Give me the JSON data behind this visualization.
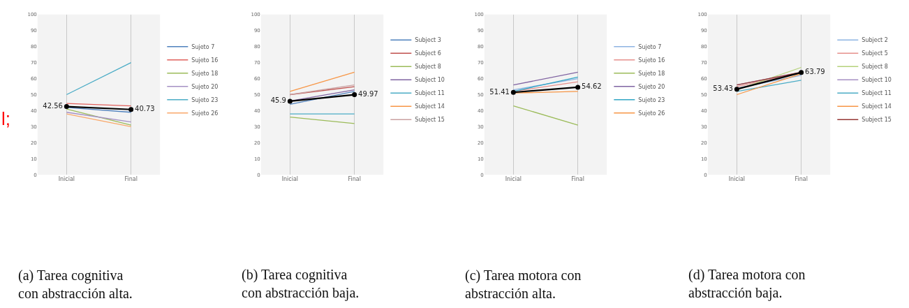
{
  "chart_data": [
    {
      "type": "line",
      "categories": [
        "Inicial",
        "Final"
      ],
      "ylim": [
        0,
        100
      ],
      "yticks": [
        0,
        10,
        20,
        30,
        40,
        50,
        60,
        70,
        80,
        90,
        100
      ],
      "grid": "x",
      "legend": "right",
      "annotations": [
        "(a) Tarea cognitiva con abstracción alta.",
        "l;"
      ],
      "series": [
        {
          "name": "Sujeto 7",
          "color": "#4f81bd",
          "values": [
            42,
            39
          ]
        },
        {
          "name": "Sujeto 16",
          "color": "#e0605c",
          "values": [
            44.5,
            43
          ]
        },
        {
          "name": "Sujeto 18",
          "color": "#9bbb59",
          "values": [
            41,
            31
          ]
        },
        {
          "name": "Sujeto 20",
          "color": "#a590c4",
          "values": [
            39,
            33
          ]
        },
        {
          "name": "Sujeto 23",
          "color": "#4bacc6",
          "values": [
            50,
            70
          ]
        },
        {
          "name": "Sujeto 26",
          "color": "#f9a86a",
          "values": [
            38,
            30
          ]
        },
        {
          "color": "#000000",
          "values": [
            42.56,
            40.73
          ],
          "marker": "circle",
          "value_labels": [
            "42.56",
            "40.73"
          ]
        }
      ]
    },
    {
      "type": "line",
      "categories": [
        "Inicial",
        "Final"
      ],
      "ylim": [
        0,
        100
      ],
      "yticks": [
        0,
        10,
        20,
        30,
        40,
        50,
        60,
        70,
        80,
        90,
        100
      ],
      "grid": "x",
      "legend": "right",
      "annotations": [
        "(b) Tarea cognitiva con abstracción baja."
      ],
      "series": [
        {
          "name": "Subject 3",
          "color": "#4f81bd",
          "values": [
            44,
            52
          ]
        },
        {
          "name": "Subject 6",
          "color": "#c0504d",
          "values": [
            50,
            55
          ]
        },
        {
          "name": "Subject 8",
          "color": "#9bbb59",
          "values": [
            36,
            32
          ]
        },
        {
          "name": "Subject 10",
          "color": "#8064a2",
          "values": [
            46,
            53
          ]
        },
        {
          "name": "Subject 11",
          "color": "#4bacc6",
          "values": [
            38,
            38
          ]
        },
        {
          "name": "Subject 14",
          "color": "#f79646",
          "values": [
            52,
            64
          ]
        },
        {
          "name": "Subject 15",
          "color": "#c9a0a0",
          "values": [
            50,
            56
          ]
        },
        {
          "color": "#000000",
          "values": [
            45.9,
            49.97
          ],
          "marker": "circle",
          "value_labels": [
            "45.9",
            "49.97"
          ]
        }
      ]
    },
    {
      "type": "line",
      "categories": [
        "Inicial",
        "Final"
      ],
      "ylim": [
        0,
        100
      ],
      "yticks": [
        0,
        10,
        20,
        30,
        40,
        50,
        60,
        70,
        80,
        90,
        100
      ],
      "grid": "x",
      "legend": "right",
      "annotations": [
        "(c) Tarea motora con abstracción alta."
      ],
      "series": [
        {
          "name": "Sujeto 7",
          "color": "#8db3e2",
          "values": [
            53,
            60
          ]
        },
        {
          "name": "Sujeto 16",
          "color": "#e6908c",
          "values": [
            52,
            58
          ]
        },
        {
          "name": "Sujeto 18",
          "color": "#9bbb59",
          "values": [
            43,
            31
          ]
        },
        {
          "name": "Sujeto 20",
          "color": "#8064a2",
          "values": [
            56,
            64
          ]
        },
        {
          "name": "Sujeto 23",
          "color": "#31a6c4",
          "values": [
            52,
            61
          ]
        },
        {
          "name": "Sujeto 26",
          "color": "#f79646",
          "values": [
            51,
            52
          ]
        },
        {
          "color": "#000000",
          "values": [
            51.41,
            54.62
          ],
          "marker": "circle",
          "value_labels": [
            "51.41",
            "54.62"
          ]
        }
      ]
    },
    {
      "type": "line",
      "categories": [
        "Inicial",
        "Final"
      ],
      "ylim": [
        0,
        100
      ],
      "yticks": [
        0,
        10,
        20,
        30,
        40,
        50,
        60,
        70,
        80,
        90,
        100
      ],
      "grid": "x",
      "legend": "right",
      "annotations": [
        "(d) Tarea motora con abstracción baja."
      ],
      "series": [
        {
          "name": "Subject 2",
          "color": "#8db3e2",
          "values": [
            54,
            62
          ]
        },
        {
          "name": "Subject 5",
          "color": "#e6908c",
          "values": [
            55,
            64
          ]
        },
        {
          "name": "Subject 8",
          "color": "#b5d27a",
          "values": [
            53,
            67
          ]
        },
        {
          "name": "Subject 10",
          "color": "#a590c4",
          "values": [
            56,
            64
          ]
        },
        {
          "name": "Subject 11",
          "color": "#4bacc6",
          "values": [
            52,
            59
          ]
        },
        {
          "name": "Subject 14",
          "color": "#f79646",
          "values": [
            50,
            63
          ]
        },
        {
          "name": "Subject 15",
          "color": "#953735",
          "values": [
            56,
            64
          ]
        },
        {
          "color": "#000000",
          "values": [
            53.43,
            63.79
          ],
          "marker": "circle",
          "value_labels": [
            "53.43",
            "63.79"
          ]
        }
      ]
    }
  ]
}
